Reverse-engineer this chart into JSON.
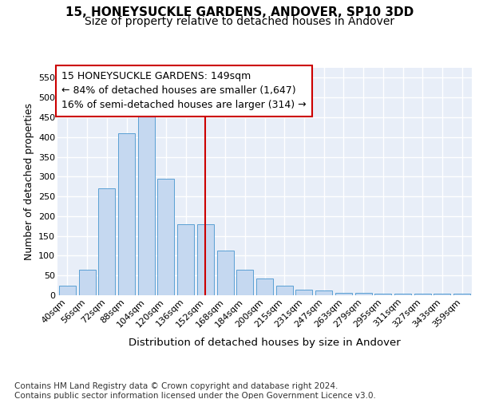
{
  "title": "15, HONEYSUCKLE GARDENS, ANDOVER, SP10 3DD",
  "subtitle": "Size of property relative to detached houses in Andover",
  "xlabel": "Distribution of detached houses by size in Andover",
  "ylabel": "Number of detached properties",
  "categories": [
    "40sqm",
    "56sqm",
    "72sqm",
    "88sqm",
    "104sqm",
    "120sqm",
    "136sqm",
    "152sqm",
    "168sqm",
    "184sqm",
    "200sqm",
    "215sqm",
    "231sqm",
    "247sqm",
    "263sqm",
    "279sqm",
    "295sqm",
    "311sqm",
    "327sqm",
    "343sqm",
    "359sqm"
  ],
  "values": [
    25,
    65,
    270,
    410,
    455,
    295,
    180,
    180,
    113,
    65,
    43,
    25,
    15,
    12,
    6,
    6,
    5,
    5,
    5,
    5,
    5
  ],
  "bar_color": "#c5d8f0",
  "bar_edge_color": "#5a9fd4",
  "highlight_line_index": 7,
  "highlight_line_color": "#cc0000",
  "annotation_text": "15 HONEYSUCKLE GARDENS: 149sqm\n← 84% of detached houses are smaller (1,647)\n16% of semi-detached houses are larger (314) →",
  "annotation_box_edgecolor": "#cc0000",
  "ylim": [
    0,
    575
  ],
  "yticks": [
    0,
    50,
    100,
    150,
    200,
    250,
    300,
    350,
    400,
    450,
    500,
    550
  ],
  "background_color": "#e8eef8",
  "grid_color": "#ffffff",
  "title_fontsize": 11,
  "subtitle_fontsize": 10,
  "ylabel_fontsize": 9,
  "xlabel_fontsize": 9.5,
  "tick_fontsize": 8,
  "annotation_fontsize": 9,
  "footer_fontsize": 7.5,
  "footer_text": "Contains HM Land Registry data © Crown copyright and database right 2024.\nContains public sector information licensed under the Open Government Licence v3.0."
}
